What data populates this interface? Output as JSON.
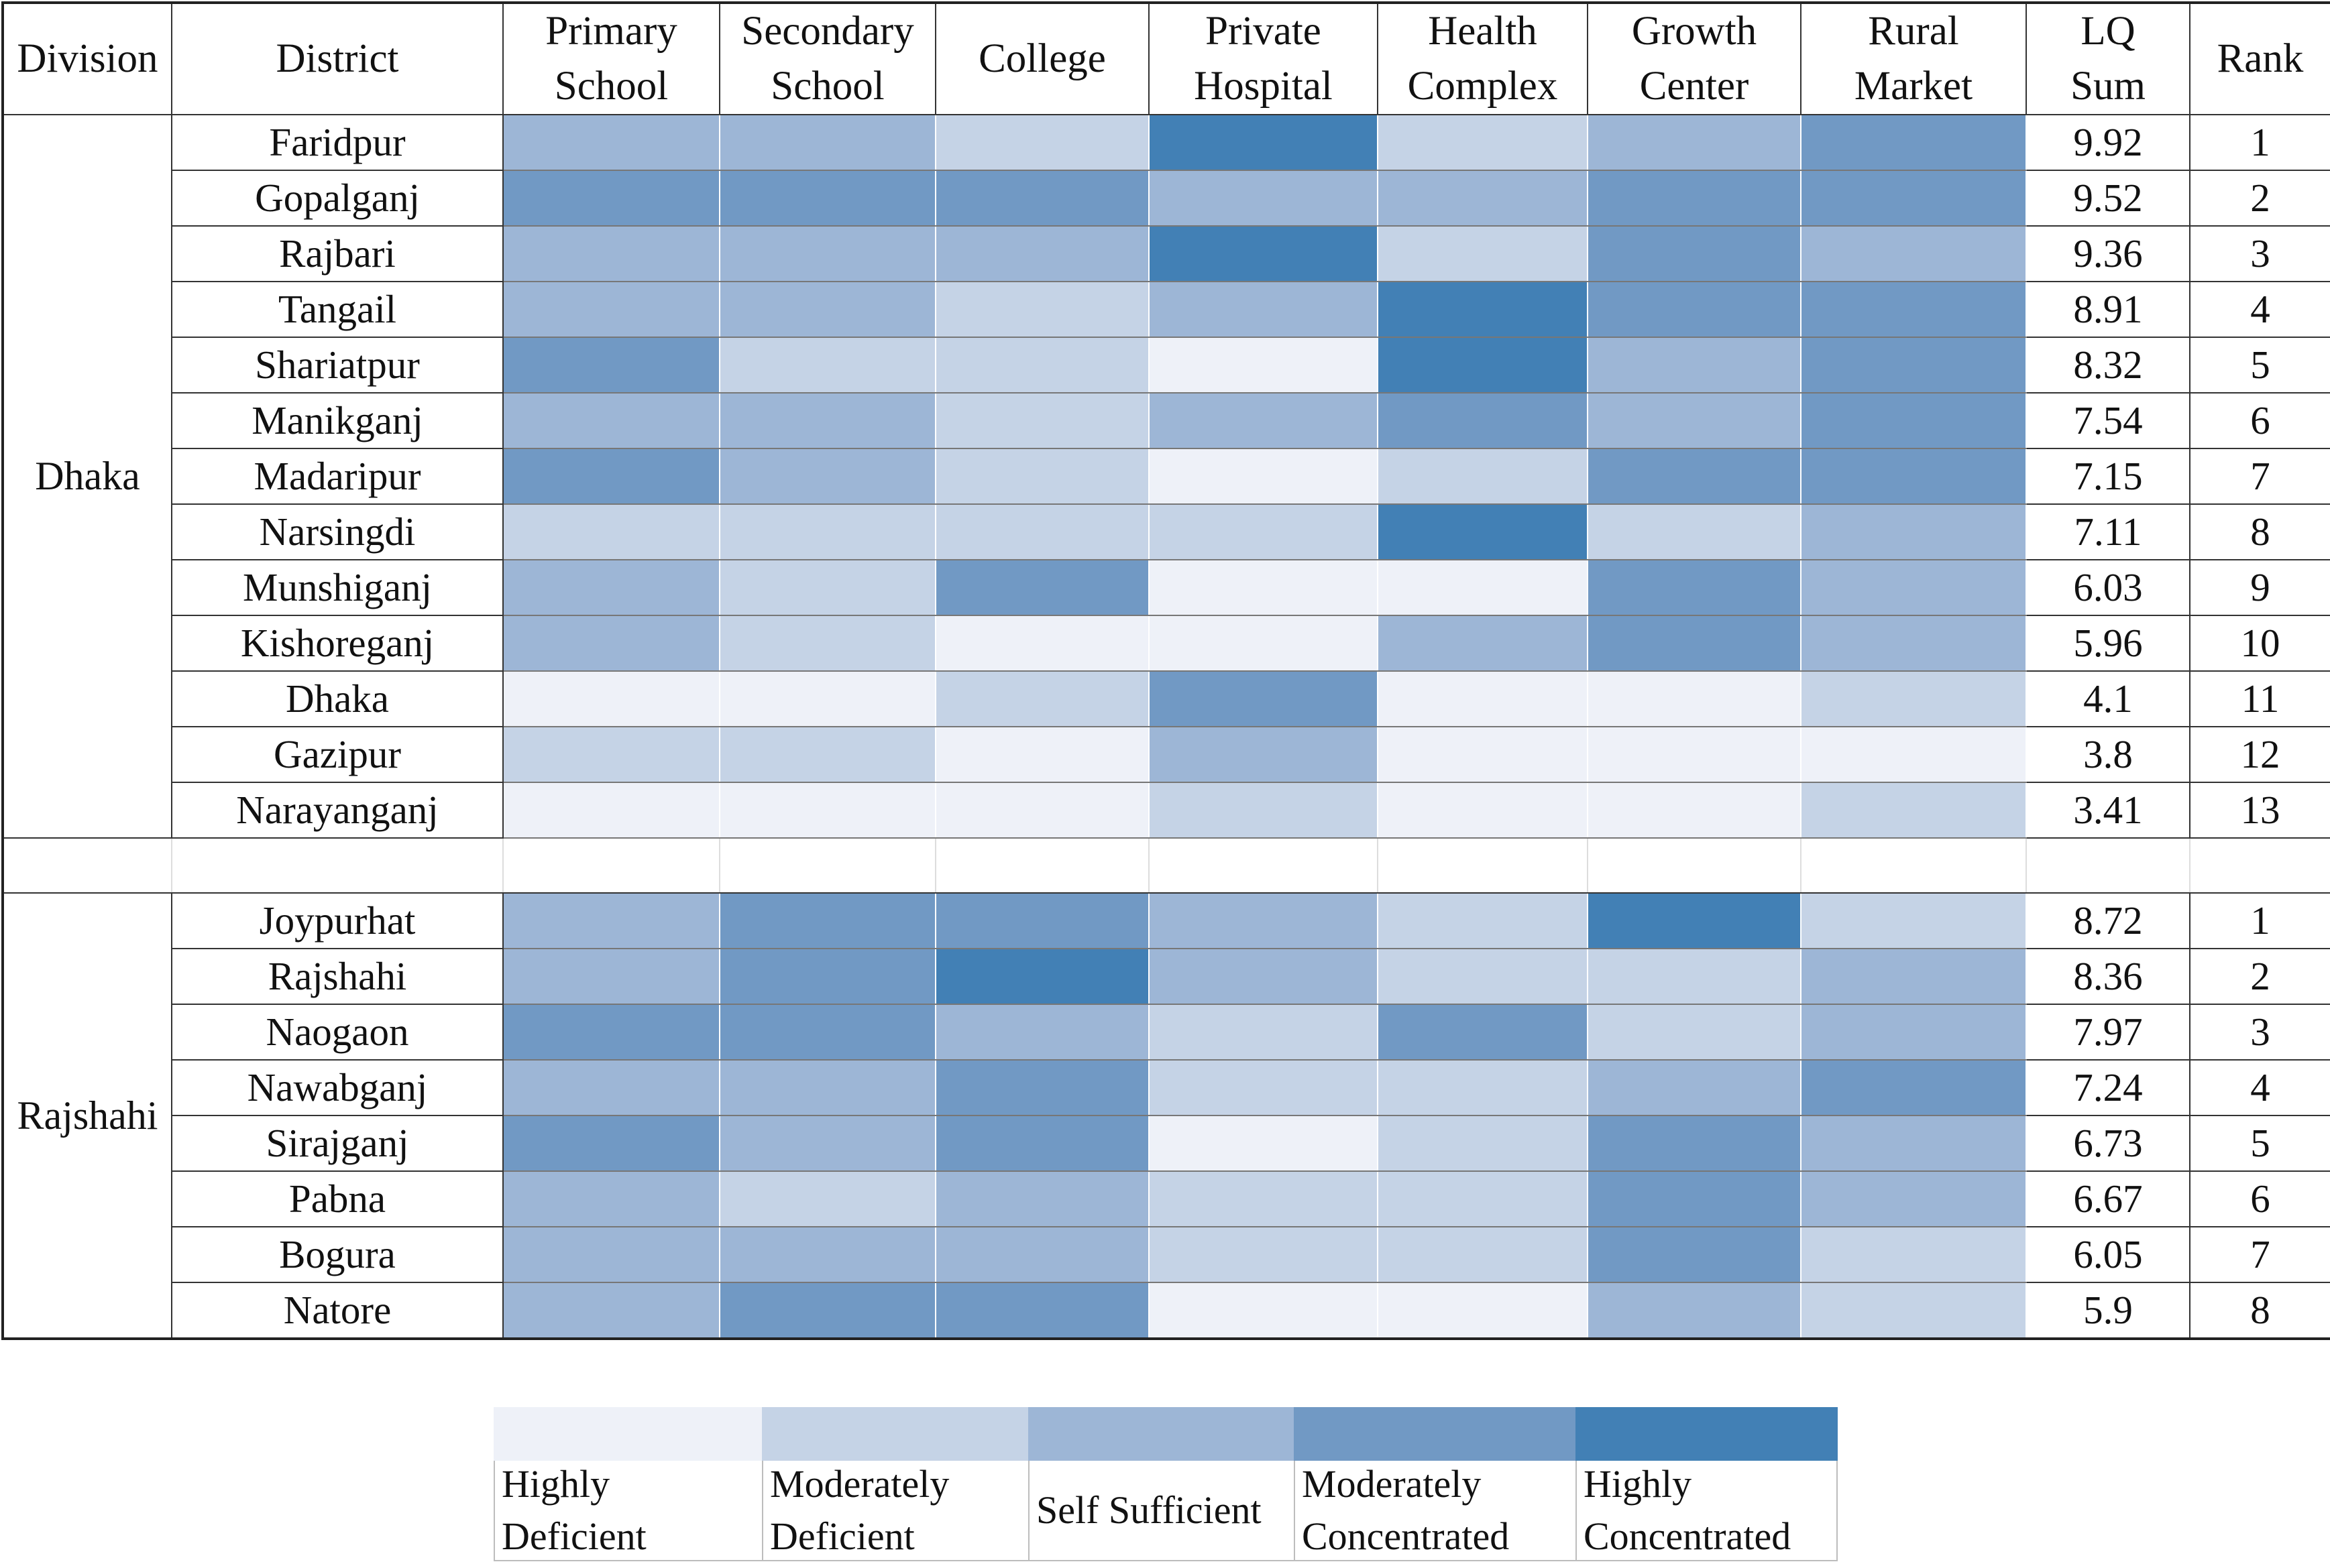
{
  "chart_data": {
    "type": "heatmap",
    "columns": [
      "Division",
      "District",
      "Primary School",
      "Secondary School",
      "College",
      "Private Hospital",
      "Health Complex",
      "Growth Center",
      "Rural Market",
      "LQ Sum",
      "Rank"
    ],
    "indicator_columns": [
      "Primary School",
      "Secondary School",
      "College",
      "Private Hospital",
      "Health Complex",
      "Growth Center",
      "Rural Market"
    ],
    "levels": [
      "Highly Deficient",
      "Moderately Deficient",
      "Self Sufficient",
      "Moderately Concentrated",
      "Highly Concentrated"
    ],
    "level_colors": [
      "#eef1f8",
      "#c5d3e6",
      "#9db6d6",
      "#7199c4",
      "#4280b5"
    ],
    "divisions": [
      {
        "name": "Dhaka",
        "rows": [
          {
            "district": "Faridpur",
            "levels": [
              2,
              2,
              1,
              4,
              1,
              2,
              3
            ],
            "lq_sum": "9.92",
            "rank": "1"
          },
          {
            "district": "Gopalganj",
            "levels": [
              3,
              3,
              3,
              2,
              2,
              3,
              3
            ],
            "lq_sum": "9.52",
            "rank": "2"
          },
          {
            "district": "Rajbari",
            "levels": [
              2,
              2,
              2,
              4,
              1,
              3,
              2
            ],
            "lq_sum": "9.36",
            "rank": "3"
          },
          {
            "district": "Tangail",
            "levels": [
              2,
              2,
              1,
              2,
              4,
              3,
              3
            ],
            "lq_sum": "8.91",
            "rank": "4"
          },
          {
            "district": "Shariatpur",
            "levels": [
              3,
              1,
              1,
              0,
              4,
              2,
              3
            ],
            "lq_sum": "8.32",
            "rank": "5"
          },
          {
            "district": "Manikganj",
            "levels": [
              2,
              2,
              1,
              2,
              3,
              2,
              3
            ],
            "lq_sum": "7.54",
            "rank": "6"
          },
          {
            "district": "Madaripur",
            "levels": [
              3,
              2,
              1,
              0,
              1,
              3,
              3
            ],
            "lq_sum": "7.15",
            "rank": "7"
          },
          {
            "district": "Narsingdi",
            "levels": [
              1,
              1,
              1,
              1,
              4,
              1,
              2
            ],
            "lq_sum": "7.11",
            "rank": "8"
          },
          {
            "district": "Munshiganj",
            "levels": [
              2,
              1,
              3,
              0,
              0,
              3,
              2
            ],
            "lq_sum": "6.03",
            "rank": "9"
          },
          {
            "district": "Kishoreganj",
            "levels": [
              2,
              1,
              0,
              0,
              2,
              3,
              2
            ],
            "lq_sum": "5.96",
            "rank": "10"
          },
          {
            "district": "Dhaka",
            "levels": [
              0,
              0,
              1,
              3,
              0,
              0,
              1
            ],
            "lq_sum": "4.1",
            "rank": "11"
          },
          {
            "district": "Gazipur",
            "levels": [
              1,
              1,
              0,
              2,
              0,
              0,
              0
            ],
            "lq_sum": "3.8",
            "rank": "12"
          },
          {
            "district": "Narayanganj",
            "levels": [
              0,
              0,
              0,
              1,
              0,
              0,
              1
            ],
            "lq_sum": "3.41",
            "rank": "13"
          }
        ]
      },
      {
        "name": "Rajshahi",
        "rows": [
          {
            "district": "Joypurhat",
            "levels": [
              2,
              3,
              3,
              2,
              1,
              4,
              1
            ],
            "lq_sum": "8.72",
            "rank": "1"
          },
          {
            "district": "Rajshahi",
            "levels": [
              2,
              3,
              4,
              2,
              1,
              1,
              2
            ],
            "lq_sum": "8.36",
            "rank": "2"
          },
          {
            "district": "Naogaon",
            "levels": [
              3,
              3,
              2,
              1,
              3,
              1,
              2
            ],
            "lq_sum": "7.97",
            "rank": "3"
          },
          {
            "district": "Nawabganj",
            "levels": [
              2,
              2,
              3,
              1,
              1,
              2,
              3
            ],
            "lq_sum": "7.24",
            "rank": "4"
          },
          {
            "district": "Sirajganj",
            "levels": [
              3,
              2,
              3,
              0,
              1,
              3,
              2
            ],
            "lq_sum": "6.73",
            "rank": "5"
          },
          {
            "district": "Pabna",
            "levels": [
              2,
              1,
              2,
              1,
              1,
              3,
              2
            ],
            "lq_sum": "6.67",
            "rank": "6"
          },
          {
            "district": "Bogura",
            "levels": [
              2,
              2,
              2,
              1,
              1,
              3,
              1
            ],
            "lq_sum": "6.05",
            "rank": "7"
          },
          {
            "district": "Natore",
            "levels": [
              2,
              3,
              3,
              0,
              0,
              2,
              1
            ],
            "lq_sum": "5.9",
            "rank": "8"
          }
        ]
      }
    ]
  },
  "header_display": [
    [
      "Division"
    ],
    [
      "District"
    ],
    [
      "Primary",
      "School"
    ],
    [
      "Secondary",
      "School"
    ],
    [
      "College"
    ],
    [
      "Private",
      "Hospital"
    ],
    [
      "Health",
      "Complex"
    ],
    [
      "Growth",
      "Center"
    ],
    [
      "Rural",
      "Market"
    ],
    [
      "LQ",
      "Sum"
    ],
    [
      "Rank"
    ]
  ],
  "legend_display": [
    [
      "Highly",
      "Deficient"
    ],
    [
      "Moderately",
      "Deficient"
    ],
    [
      "Self Sufficient"
    ],
    [
      "Moderately",
      "Concentrated"
    ],
    [
      "Highly",
      "Concentrated"
    ]
  ]
}
